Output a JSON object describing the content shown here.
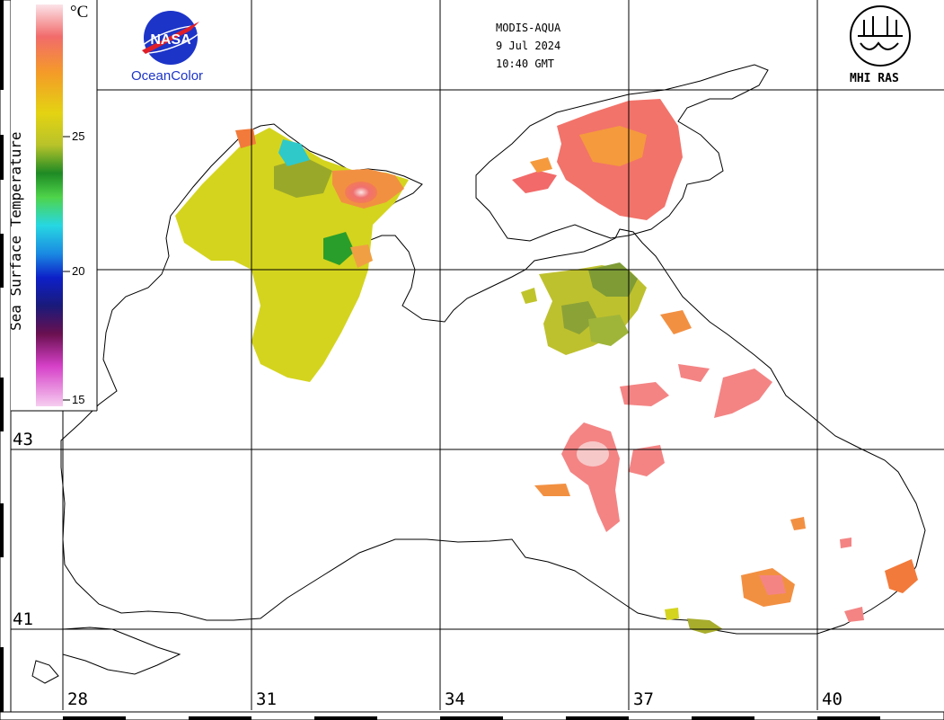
{
  "header": {
    "sensor": "MODIS-AQUA",
    "date": "9 Jul 2024",
    "time": "10:40 GMT"
  },
  "logos": {
    "nasa_label": "NASA",
    "left_caption": "OceanColor",
    "right_caption": "MHI RAS"
  },
  "colorbar": {
    "title": "Sea Surface Temperature",
    "unit": "°C",
    "ticks": [
      "25",
      "20",
      "15"
    ],
    "range": [
      15,
      29
    ]
  },
  "axes": {
    "longitude_labels": [
      "28",
      "31",
      "34",
      "37",
      "40"
    ],
    "latitude_labels": [
      "43",
      "41"
    ]
  }
}
